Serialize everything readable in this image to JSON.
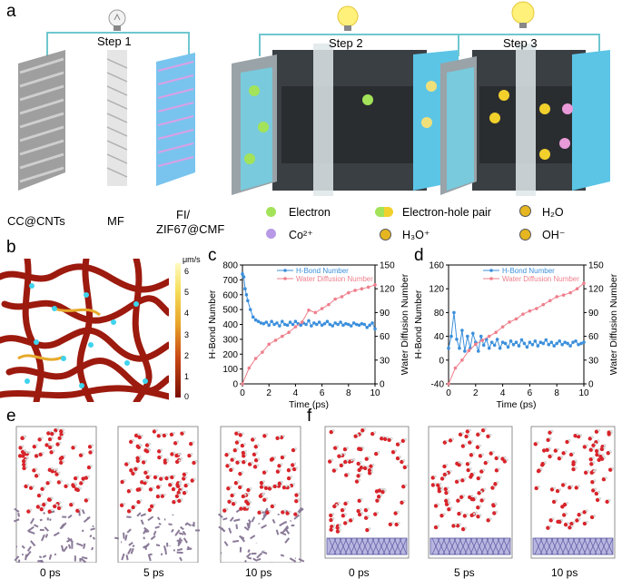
{
  "figure": {
    "panel_labels": {
      "a": "a",
      "b": "b",
      "c": "c",
      "d": "d",
      "e": "e",
      "f": "f"
    },
    "panel_a": {
      "steps": [
        "Step 1",
        "Step 2",
        "Step 3"
      ],
      "component_labels": [
        "CC@CNTs",
        "MF",
        "FI/",
        "ZIF67@CMF"
      ],
      "legend": {
        "electron": "Electron",
        "electron_hole_pair": "Electron-hole pair",
        "h2o": "H₂O",
        "co2": "Co²⁺",
        "h3o": "H₃O⁺",
        "oh": "OH⁻"
      }
    },
    "panel_b": {
      "colorbar_unit": "μm/s",
      "colorbar_ticks": [
        "6",
        "5",
        "4",
        "3",
        "2",
        "1",
        "0"
      ]
    },
    "panel_e": {
      "times": [
        "0 ps",
        "5 ps",
        "10 ps"
      ]
    },
    "panel_f": {
      "times": [
        "0 ps",
        "5 ps",
        "10 ps"
      ]
    }
  },
  "chart_data": [
    {
      "id": "c",
      "type": "line",
      "xlabel": "Time (ps)",
      "ylabel_left": "H-Bond Number",
      "ylabel_right": "Water Diffusion Number",
      "xlim": [
        0,
        10
      ],
      "ylim_left": [
        0,
        800
      ],
      "ylim_right": [
        0,
        150
      ],
      "x_ticks": [
        "0",
        "2",
        "4",
        "6",
        "8",
        "10"
      ],
      "y_left_ticks": [
        "0",
        "100",
        "200",
        "300",
        "400",
        "500",
        "600",
        "700",
        "800"
      ],
      "y_right_ticks": [
        "0",
        "30",
        "60",
        "90",
        "120",
        "150"
      ],
      "series": [
        {
          "name": "H-Bond Number",
          "axis": "left",
          "color": "#3b8fdc",
          "x": [
            0,
            0.1,
            0.2,
            0.3,
            0.4,
            0.6,
            0.8,
            1.0,
            1.2,
            1.4,
            1.6,
            1.8,
            2.0,
            2.2,
            2.4,
            2.6,
            2.8,
            3.0,
            3.2,
            3.4,
            3.6,
            3.8,
            4.0,
            4.2,
            4.4,
            4.6,
            4.8,
            5.0,
            5.2,
            5.4,
            5.6,
            5.8,
            6.0,
            6.2,
            6.4,
            6.6,
            6.8,
            7.0,
            7.2,
            7.4,
            7.6,
            7.8,
            8.0,
            8.2,
            8.4,
            8.6,
            8.8,
            9.0,
            9.2,
            9.4,
            9.6,
            9.8,
            10.0
          ],
          "y": [
            740,
            720,
            640,
            600,
            560,
            500,
            450,
            430,
            420,
            410,
            405,
            415,
            395,
            420,
            400,
            410,
            390,
            420,
            400,
            395,
            415,
            400,
            420,
            405,
            395,
            410,
            400,
            425,
            390,
            410,
            400,
            415,
            395,
            405,
            420,
            400,
            390,
            410,
            400,
            415,
            395,
            405,
            400,
            390,
            410,
            400,
            395,
            405,
            400,
            380,
            395,
            410,
            370
          ]
        },
        {
          "name": "Water Diffusion Number",
          "axis": "right",
          "color": "#ef7f8c",
          "x": [
            0,
            0.5,
            1,
            1.5,
            2,
            2.5,
            3,
            3.5,
            4,
            4.5,
            5,
            5.5,
            6,
            6.5,
            7,
            7.5,
            8,
            8.5,
            9,
            9.5,
            10
          ],
          "y": [
            0,
            20,
            32,
            40,
            50,
            55,
            60,
            65,
            72,
            78,
            93,
            90,
            95,
            100,
            107,
            110,
            115,
            118,
            120,
            122,
            125
          ]
        }
      ]
    },
    {
      "id": "d",
      "type": "line",
      "xlabel": "Time (ps)",
      "ylabel_left": "H-Bond Number",
      "ylabel_right": "Water Diffusion Number",
      "xlim": [
        0,
        10
      ],
      "ylim_left": [
        -40,
        160
      ],
      "ylim_right": [
        0,
        150
      ],
      "x_ticks": [
        "0",
        "2",
        "4",
        "6",
        "8",
        "10"
      ],
      "y_left_ticks": [
        "-40",
        "0",
        "40",
        "80",
        "120",
        "160"
      ],
      "y_right_ticks": [
        "0",
        "30",
        "60",
        "90",
        "120",
        "150"
      ],
      "series": [
        {
          "name": "H-Bond Number",
          "axis": "left",
          "color": "#3b8fdc",
          "x": [
            0,
            0.2,
            0.4,
            0.6,
            0.8,
            1.0,
            1.2,
            1.4,
            1.6,
            1.8,
            2.0,
            2.2,
            2.4,
            2.6,
            2.8,
            3.0,
            3.2,
            3.4,
            3.6,
            3.8,
            4.0,
            4.2,
            4.4,
            4.6,
            4.8,
            5.0,
            5.2,
            5.4,
            5.6,
            5.8,
            6.0,
            6.2,
            6.4,
            6.6,
            6.8,
            7.0,
            7.2,
            7.4,
            7.6,
            7.8,
            8.0,
            8.2,
            8.4,
            8.6,
            8.8,
            9.0,
            9.2,
            9.4,
            9.6,
            9.8,
            10.0
          ],
          "y": [
            20,
            40,
            80,
            35,
            20,
            50,
            15,
            40,
            20,
            45,
            30,
            15,
            40,
            25,
            35,
            20,
            30,
            25,
            35,
            20,
            30,
            28,
            22,
            32,
            26,
            30,
            24,
            34,
            28,
            22,
            30,
            26,
            32,
            24,
            30,
            28,
            34,
            26,
            30,
            24,
            28,
            32,
            26,
            30,
            28,
            24,
            30,
            32,
            26,
            28,
            30
          ]
        },
        {
          "name": "Water Diffusion Number",
          "axis": "right",
          "color": "#ef7f8c",
          "x": [
            0,
            0.5,
            1,
            1.5,
            2,
            2.5,
            3,
            3.5,
            4,
            4.5,
            5,
            5.5,
            6,
            6.5,
            7,
            7.5,
            8,
            8.5,
            9,
            9.5,
            10
          ],
          "y": [
            0,
            20,
            30,
            42,
            50,
            55,
            60,
            65,
            72,
            78,
            82,
            88,
            92,
            95,
            100,
            105,
            110,
            112,
            115,
            120,
            127
          ]
        }
      ]
    }
  ]
}
